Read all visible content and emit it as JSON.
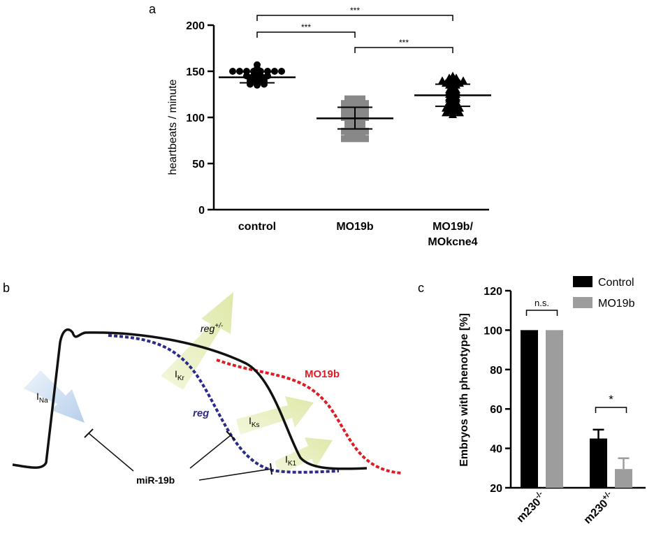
{
  "panels": {
    "a": {
      "letter": "a"
    },
    "b": {
      "letter": "b"
    },
    "c": {
      "letter": "c"
    }
  },
  "chart_data": [
    {
      "panel": "a",
      "type": "scatter",
      "ylabel": "heartbeats / minute",
      "ylim": [
        0,
        200
      ],
      "yticks": [
        0,
        50,
        100,
        150,
        200
      ],
      "categories": [
        "control",
        "MO19b",
        "MO19b/\nMOkcne4"
      ],
      "category_lines": [
        [
          "control"
        ],
        [
          "MO19b"
        ],
        [
          "MO19b/",
          "MOkcne4"
        ]
      ],
      "series": [
        {
          "category": "control",
          "marker": "circle",
          "color": "#000000",
          "mean": 143.5,
          "sd_low": 137.5,
          "sd_high": 149.5,
          "values": [
            157,
            153,
            150,
            150,
            150,
            150,
            150,
            150,
            150,
            150,
            147,
            145,
            145,
            145,
            145,
            143,
            143,
            143,
            142,
            142,
            140,
            140,
            140,
            138,
            138,
            138,
            136,
            136,
            136,
            135
          ]
        },
        {
          "category": "MO19b",
          "marker": "square",
          "color": "#888888",
          "mean": 99,
          "sd_low": 87.5,
          "sd_high": 111,
          "values": [
            120,
            120,
            120,
            115,
            115,
            115,
            115,
            110,
            110,
            110,
            110,
            105,
            105,
            105,
            105,
            100,
            100,
            100,
            100,
            98,
            95,
            95,
            95,
            93,
            90,
            90,
            90,
            88,
            85,
            85,
            85,
            85,
            82,
            80,
            80,
            80,
            77,
            77,
            77,
            77
          ]
        },
        {
          "category": "MO19b/\nMOkcne4",
          "marker": "triangle",
          "color": "#000000",
          "mean": 124,
          "sd_low": 112,
          "sd_high": 136,
          "values": [
            145,
            143,
            143,
            140,
            140,
            140,
            140,
            137,
            137,
            137,
            135,
            135,
            133,
            130,
            130,
            128,
            128,
            125,
            125,
            122,
            122,
            120,
            120,
            117,
            117,
            115,
            115,
            112,
            112,
            110,
            110,
            110,
            107,
            107,
            105,
            105,
            105,
            103
          ]
        }
      ],
      "significance": [
        {
          "from": "control",
          "to": "MO19b/\nMOkcne4",
          "label": "***"
        },
        {
          "from": "control",
          "to": "MO19b",
          "label": "***"
        },
        {
          "from": "MO19b",
          "to": "MO19b/\nMOkcne4",
          "label": "***"
        }
      ]
    },
    {
      "panel": "c",
      "type": "bar",
      "ylabel": "Embryos with phenotype [%]",
      "ylim": [
        20,
        120
      ],
      "yticks": [
        20,
        40,
        60,
        80,
        100,
        120
      ],
      "categories": [
        "m230-/-",
        "m230+/-"
      ],
      "category_labels": [
        {
          "base": "m230",
          "sup": "-/-"
        },
        {
          "base": "m230",
          "sup": "+/-"
        }
      ],
      "legend_position": "top-right",
      "series": [
        {
          "name": "Control",
          "color": "#000000",
          "values": [
            100,
            45
          ],
          "errors": [
            0,
            4.5
          ]
        },
        {
          "name": "MO19b",
          "color": "#9d9d9d",
          "values": [
            100,
            29.5
          ],
          "errors": [
            0,
            5.5
          ]
        }
      ],
      "significance": [
        {
          "category": "m230-/-",
          "label": "n.s."
        },
        {
          "category": "m230+/-",
          "label": "*"
        }
      ]
    }
  ],
  "diagram_b": {
    "labels": {
      "reg_plus": {
        "main": "reg",
        "sup": "+/-"
      },
      "mo19b": "MO19b",
      "reg": "reg",
      "mir19b": "miR-19b",
      "currents": [
        {
          "main": "I",
          "sub": "Na"
        },
        {
          "main": "I",
          "sub": "Kr"
        },
        {
          "main": "I",
          "sub": "Ks"
        },
        {
          "main": "I",
          "sub": "K1"
        }
      ]
    },
    "colors": {
      "black_trace": "#111111",
      "reg_trace": "#2b2b8c",
      "mo19b_trace": "#e01b24",
      "arrow_green": "#e9efbf",
      "arrow_blue": "#c7d9f0"
    }
  }
}
